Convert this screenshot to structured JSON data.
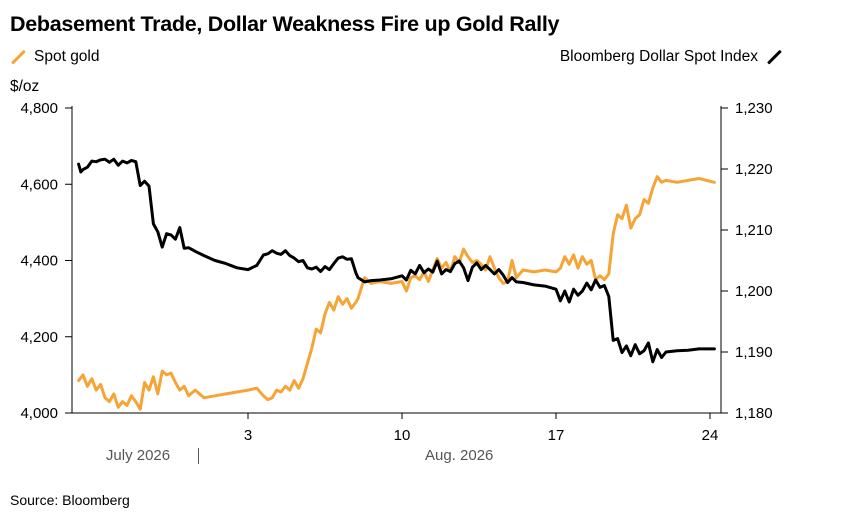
{
  "chart_data": {
    "type": "line",
    "title": "Debasement Trade, Dollar Weakness Fire up Gold Rally",
    "ylabel_left": "$/oz",
    "ylim_left": [
      4000,
      4800
    ],
    "yticks_left": [
      "4,000",
      "4,200",
      "4,400",
      "4,600",
      "4,800"
    ],
    "ylim_right": [
      1180,
      1230
    ],
    "yticks_right": [
      "1,180",
      "1,190",
      "1,200",
      "1,210",
      "1,220",
      "1,230"
    ],
    "xlim": [
      -5,
      24.5
    ],
    "xticks": [
      {
        "x": 3,
        "label": "3"
      },
      {
        "x": 10,
        "label": "10"
      },
      {
        "x": 17,
        "label": "17"
      },
      {
        "x": 24,
        "label": "24"
      }
    ],
    "month_labels": [
      {
        "x": -2,
        "label": "July 2026"
      },
      {
        "x": 12.6,
        "label": "Aug. 2026"
      }
    ],
    "month_divider_x": 0.75,
    "series": [
      {
        "name": "Spot gold",
        "axis": "left",
        "color": "#f5a435",
        "x": [
          -4.7,
          -4.5,
          -4.3,
          -4.1,
          -3.9,
          -3.7,
          -3.5,
          -3.3,
          -3.1,
          -2.9,
          -2.7,
          -2.5,
          -2.3,
          -2.1,
          -1.9,
          -1.7,
          -1.5,
          -1.3,
          -1.1,
          -0.9,
          -0.7,
          -0.5,
          -0.3,
          -0.1,
          0.1,
          0.3,
          0.6,
          1,
          1.5,
          2,
          2.5,
          3,
          3.4,
          3.7,
          3.9,
          4.1,
          4.3,
          4.5,
          4.7,
          4.9,
          5.1,
          5.3,
          5.5,
          5.7,
          5.9,
          6.1,
          6.3,
          6.5,
          6.7,
          6.9,
          7.1,
          7.3,
          7.5,
          7.7,
          7.9,
          8,
          8.3,
          8.6,
          9,
          9.5,
          10,
          10.2,
          10.4,
          10.6,
          10.8,
          11,
          11.2,
          11.4,
          11.6,
          11.8,
          12,
          12.2,
          12.4,
          12.6,
          12.8,
          13,
          13.2,
          13.4,
          13.6,
          13.8,
          14,
          14.2,
          14.4,
          14.6,
          14.8,
          15,
          15.2,
          15.5,
          16,
          16.5,
          17,
          17.2,
          17.4,
          17.6,
          17.8,
          18,
          18.2,
          18.4,
          18.6,
          18.8,
          19,
          19.2,
          19.4,
          19.6,
          19.8,
          20,
          20.2,
          20.4,
          20.6,
          20.8,
          21,
          21.2,
          21.4,
          21.6,
          21.8,
          22,
          22.5,
          23,
          23.5,
          24.2
        ],
        "y": [
          4085,
          4100,
          4070,
          4090,
          4060,
          4075,
          4040,
          4030,
          4050,
          4015,
          4030,
          4020,
          4045,
          4030,
          4010,
          4080,
          4060,
          4095,
          4050,
          4110,
          4100,
          4105,
          4080,
          4060,
          4070,
          4045,
          4060,
          4040,
          4045,
          4050,
          4055,
          4060,
          4065,
          4045,
          4035,
          4040,
          4060,
          4055,
          4070,
          4060,
          4085,
          4065,
          4090,
          4130,
          4170,
          4220,
          4210,
          4260,
          4290,
          4270,
          4305,
          4285,
          4300,
          4275,
          4290,
          4300,
          4355,
          4340,
          4345,
          4340,
          4345,
          4320,
          4355,
          4360,
          4350,
          4370,
          4345,
          4375,
          4405,
          4380,
          4395,
          4370,
          4410,
          4395,
          4430,
          4410,
          4395,
          4400,
          4390,
          4375,
          4410,
          4380,
          4355,
          4340,
          4345,
          4400,
          4355,
          4375,
          4370,
          4375,
          4370,
          4380,
          4410,
          4390,
          4415,
          4380,
          4410,
          4390,
          4400,
          4350,
          4360,
          4350,
          4365,
          4470,
          4520,
          4510,
          4545,
          4485,
          4510,
          4520,
          4560,
          4550,
          4590,
          4620,
          4605,
          4610,
          4605,
          4610,
          4615,
          4605
        ]
      },
      {
        "name": "Bloomberg Dollar Spot Index",
        "axis": "right",
        "color": "#000000",
        "x": [
          -4.7,
          -4.6,
          -4.5,
          -4.3,
          -4.1,
          -3.9,
          -3.7,
          -3.5,
          -3.3,
          -3.1,
          -2.9,
          -2.7,
          -2.5,
          -2.3,
          -2.1,
          -1.9,
          -1.7,
          -1.5,
          -1.3,
          -1.1,
          -0.9,
          -0.7,
          -0.5,
          -0.3,
          -0.1,
          0.1,
          0.3,
          0.6,
          1,
          1.5,
          2,
          2.5,
          3,
          3.4,
          3.7,
          3.9,
          4.1,
          4.3,
          4.5,
          4.7,
          4.9,
          5.1,
          5.3,
          5.5,
          5.7,
          5.9,
          6.1,
          6.3,
          6.5,
          6.7,
          6.9,
          7.1,
          7.3,
          7.5,
          7.7,
          7.9,
          8,
          8.3,
          8.6,
          9,
          9.5,
          10,
          10.2,
          10.4,
          10.6,
          10.8,
          11,
          11.2,
          11.4,
          11.6,
          11.8,
          12,
          12.2,
          12.4,
          12.6,
          12.8,
          13,
          13.2,
          13.4,
          13.6,
          13.8,
          14,
          14.2,
          14.4,
          14.6,
          14.8,
          15,
          15.2,
          15.5,
          16,
          16.5,
          17,
          17.2,
          17.4,
          17.6,
          17.8,
          18,
          18.2,
          18.4,
          18.6,
          18.8,
          19,
          19.2,
          19.4,
          19.6,
          19.8,
          20,
          20.2,
          20.4,
          20.6,
          20.8,
          21,
          21.2,
          21.4,
          21.6,
          21.8,
          22,
          22.5,
          23,
          23.5,
          24.2
        ],
        "y": [
          1220.8,
          1219.5,
          1219.9,
          1220.3,
          1221.3,
          1221.2,
          1221.5,
          1221.6,
          1221.1,
          1221.6,
          1220.6,
          1221.3,
          1221.0,
          1221.4,
          1221.2,
          1217.3,
          1218.0,
          1217.2,
          1211.0,
          1209.7,
          1207.2,
          1209.4,
          1209.2,
          1208.5,
          1210.4,
          1207.0,
          1207.1,
          1206.5,
          1205.8,
          1205.0,
          1204.5,
          1203.8,
          1203.5,
          1204.2,
          1205.9,
          1206.1,
          1206.6,
          1206.2,
          1206.0,
          1206.6,
          1205.8,
          1205.4,
          1204.8,
          1205.0,
          1203.8,
          1203.6,
          1203.9,
          1203.2,
          1204.0,
          1203.5,
          1204.5,
          1205.4,
          1205.6,
          1205.2,
          1205.3,
          1203.0,
          1202.2,
          1201.5,
          1201.7,
          1201.8,
          1202.0,
          1202.5,
          1201.8,
          1203.4,
          1202.8,
          1204.2,
          1203.0,
          1203.6,
          1203.1,
          1204.9,
          1202.8,
          1203.5,
          1203.2,
          1204.5,
          1204.9,
          1203.8,
          1201.7,
          1203.9,
          1204.6,
          1203.5,
          1204.2,
          1203.5,
          1202.8,
          1203.5,
          1202.6,
          1201.4,
          1202.2,
          1201.5,
          1201.4,
          1201.0,
          1200.8,
          1200.3,
          1198.4,
          1200.0,
          1198.2,
          1200.3,
          1199.3,
          1200.0,
          1201.3,
          1200.2,
          1201.8,
          1200.6,
          1200.9,
          1199.1,
          1191.9,
          1192.2,
          1189.9,
          1191.0,
          1189.4,
          1191.2,
          1189.7,
          1190.2,
          1191.5,
          1188.4,
          1190.4,
          1189.1,
          1190.0,
          1190.2,
          1190.3,
          1190.5,
          1190.5
        ]
      }
    ],
    "grid": false,
    "legend_placement": "top"
  },
  "source": "Source: Bloomberg"
}
